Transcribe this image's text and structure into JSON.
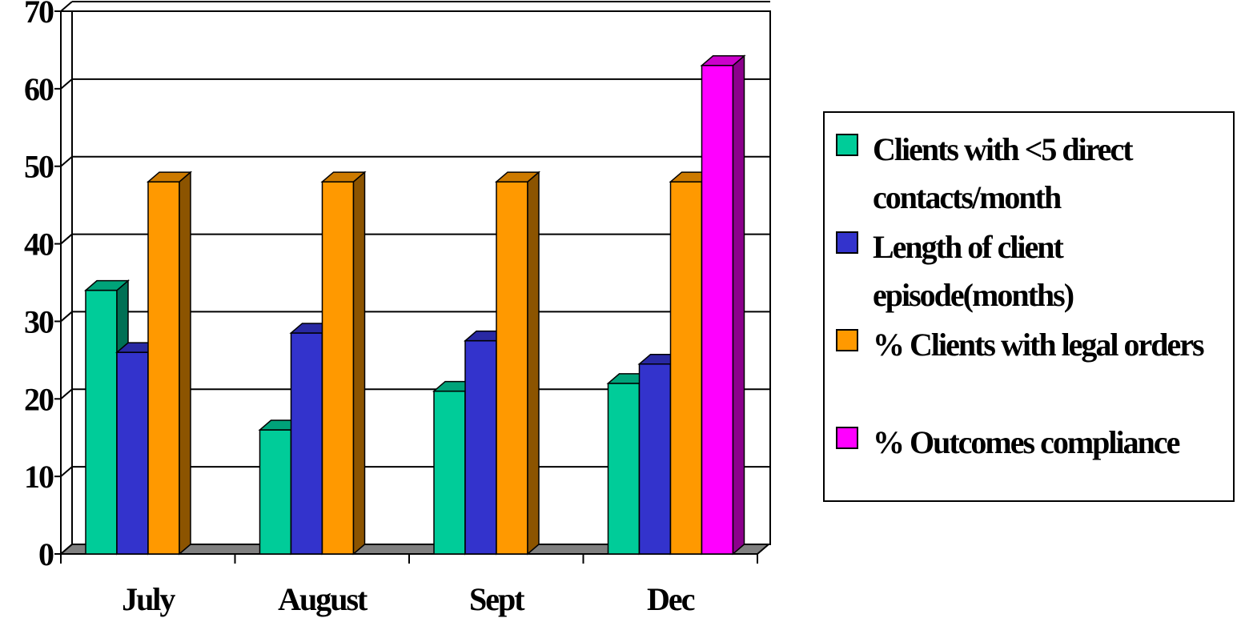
{
  "chart_data": {
    "type": "bar",
    "categories": [
      "July",
      "August",
      "Sept",
      "Dec"
    ],
    "series": [
      {
        "name": "Clients with <5 direct contacts/month",
        "values": [
          34,
          16,
          21,
          22
        ],
        "color": "#00cc99"
      },
      {
        "name": "Length of client episode(months)",
        "values": [
          26,
          28.5,
          27.5,
          24.5
        ],
        "color": "#3333cc"
      },
      {
        "name": "% Clients with legal orders",
        "values": [
          48,
          48,
          48,
          48
        ],
        "color": "#ff9900"
      },
      {
        "name": "% Outcomes compliance",
        "values": [
          null,
          null,
          null,
          63
        ],
        "color": "#ff00ff"
      }
    ],
    "ylim": [
      0,
      70
    ],
    "yticks": [
      "0",
      "10",
      "20",
      "30",
      "40",
      "50",
      "60",
      "70"
    ],
    "grid": true,
    "legend_position": "right",
    "title": "",
    "xlabel": "",
    "ylabel": ""
  }
}
